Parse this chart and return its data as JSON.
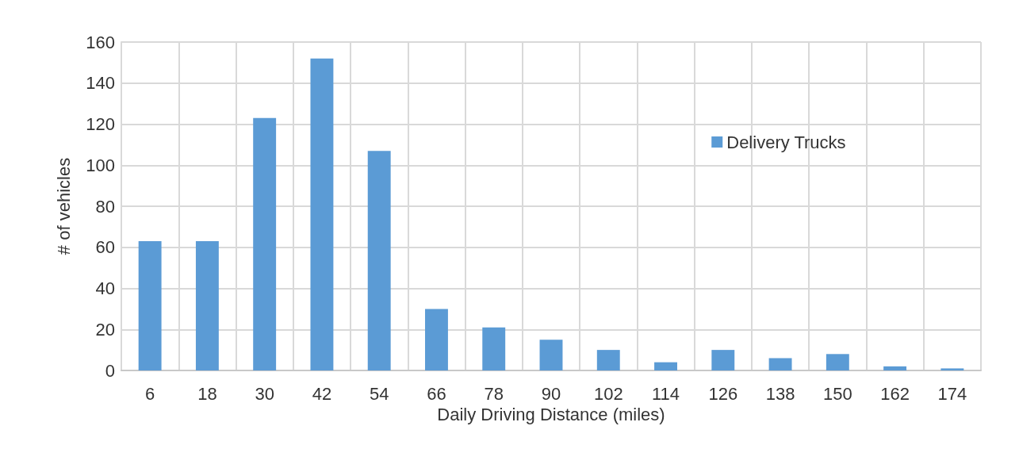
{
  "chart_data": {
    "type": "bar",
    "xlabel": "Daily Driving Distance (miles)",
    "ylabel": "# of vehicles",
    "categories": [
      "6",
      "18",
      "30",
      "42",
      "54",
      "66",
      "78",
      "90",
      "102",
      "114",
      "126",
      "138",
      "150",
      "162",
      "174"
    ],
    "series": [
      {
        "name": "Delivery Trucks",
        "color": "#5b9bd5",
        "values": [
          63,
          63,
          123,
          152,
          107,
          30,
          21,
          15,
          10,
          4,
          10,
          6,
          8,
          2,
          1
        ]
      }
    ],
    "ylim": [
      0,
      160
    ],
    "yticks": [
      0,
      20,
      40,
      60,
      80,
      100,
      120,
      140,
      160
    ],
    "grid": true,
    "legend": "top right"
  }
}
